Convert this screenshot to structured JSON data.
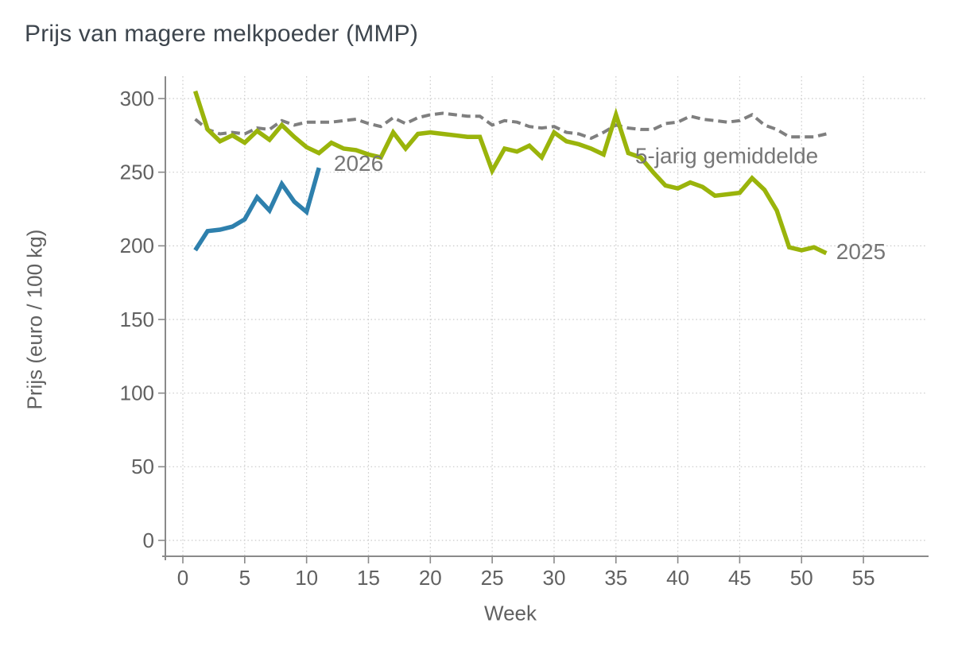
{
  "title": "Prijs van magere melkpoeder (MMP)",
  "chart_data": {
    "type": "line",
    "title": "Prijs van magere melkpoeder (MMP)",
    "xlabel": "Week",
    "ylabel": "Prijs (euro / 100 kg)",
    "grid": true,
    "legend_position": "inline-annotations",
    "xlim": [
      -1.4,
      60
    ],
    "ylim": [
      -11,
      315
    ],
    "x_ticks": [
      0,
      5,
      10,
      15,
      20,
      25,
      30,
      35,
      40,
      45,
      50,
      55
    ],
    "y_ticks": [
      0,
      50,
      100,
      150,
      200,
      250,
      300
    ],
    "colors": {
      "series_2025": "#9ab40b",
      "series_2026": "#2e80ad",
      "series_avg": "#7f7f7f",
      "annotation_text": "#767676",
      "title_text": "#3d454d",
      "axis_text": "#616161"
    },
    "series": [
      {
        "name": "5-jarig gemiddelde",
        "style": "dashed",
        "color": "#7f7f7f",
        "width": 4,
        "x": [
          1,
          2,
          3,
          4,
          5,
          6,
          7,
          8,
          9,
          10,
          11,
          12,
          13,
          14,
          15,
          16,
          17,
          18,
          19,
          20,
          21,
          22,
          23,
          24,
          25,
          26,
          27,
          28,
          29,
          30,
          31,
          32,
          33,
          34,
          35,
          36,
          37,
          38,
          39,
          40,
          41,
          42,
          43,
          44,
          45,
          46,
          47,
          48,
          49,
          50,
          51,
          52
        ],
        "values": [
          286,
          279,
          276,
          277,
          276,
          280,
          279,
          285,
          282,
          284,
          284,
          284,
          285,
          286,
          283,
          281,
          287,
          283,
          287,
          289,
          290,
          289,
          288,
          288,
          282,
          285,
          284,
          281,
          280,
          281,
          277,
          276,
          273,
          277,
          282,
          280,
          279,
          279,
          283,
          284,
          288,
          286,
          285,
          284,
          285,
          289,
          282,
          279,
          274,
          274,
          274,
          276
        ]
      },
      {
        "name": "2025",
        "style": "solid",
        "color": "#9ab40b",
        "width": 5.5,
        "x": [
          1,
          2,
          3,
          4,
          5,
          6,
          7,
          8,
          9,
          10,
          11,
          12,
          13,
          14,
          15,
          16,
          17,
          18,
          19,
          20,
          21,
          22,
          23,
          24,
          25,
          26,
          27,
          28,
          29,
          30,
          31,
          32,
          33,
          34,
          35,
          36,
          37,
          38,
          39,
          40,
          41,
          42,
          43,
          44,
          45,
          46,
          47,
          48,
          49,
          50,
          51,
          52
        ],
        "values": [
          305,
          279,
          271,
          275,
          270,
          278,
          272,
          282,
          274,
          267,
          263,
          270,
          266,
          265,
          262,
          260,
          277,
          266,
          276,
          277,
          276,
          275,
          274,
          274,
          251,
          266,
          264,
          268,
          260,
          277,
          271,
          269,
          266,
          262,
          289,
          263,
          260,
          250,
          241,
          239,
          243,
          240,
          234,
          235,
          236,
          246,
          238,
          224,
          199,
          197,
          199,
          195
        ]
      },
      {
        "name": "2026",
        "style": "solid",
        "color": "#2e80ad",
        "width": 5.5,
        "x": [
          1,
          2,
          3,
          4,
          5,
          6,
          7,
          8,
          9,
          10,
          11
        ],
        "values": [
          197,
          210,
          211,
          213,
          218,
          233,
          224,
          242,
          230,
          223,
          253
        ]
      }
    ],
    "annotations": [
      {
        "text": "2026",
        "week": 12.2,
        "value": 251
      },
      {
        "text": "5-jarig gemiddelde",
        "week": 36.55,
        "value": 256
      },
      {
        "text": "2025",
        "week": 52.8,
        "value": 191
      }
    ]
  }
}
